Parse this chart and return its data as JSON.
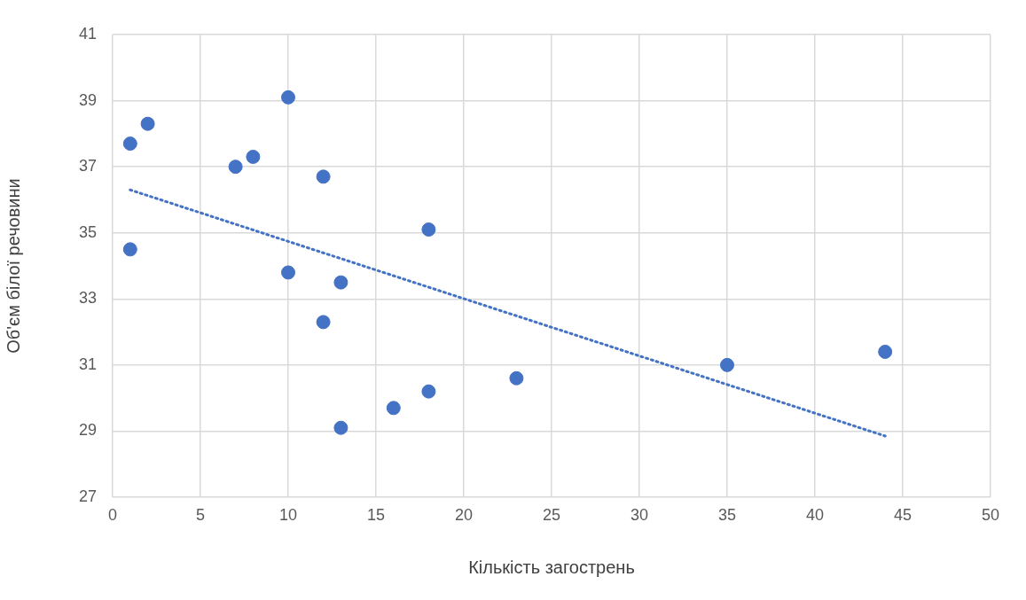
{
  "chart_data": {
    "type": "scatter",
    "xlabel": "Кількість загострень",
    "ylabel": "Об'єм білої речовини",
    "xlim": [
      0,
      50
    ],
    "xticks": [
      0,
      5,
      10,
      15,
      20,
      25,
      30,
      35,
      40,
      45,
      50
    ],
    "ylim": [
      27,
      41
    ],
    "yticks": [
      27,
      29,
      31,
      33,
      35,
      37,
      39,
      41
    ],
    "grid": true,
    "legend": false,
    "marker": "circle",
    "series": [
      {
        "color": "#4472c4",
        "x": [
          1,
          1,
          2,
          7,
          8,
          10,
          10,
          12,
          12,
          13,
          13,
          16,
          18,
          18,
          23,
          35,
          44
        ],
        "values": [
          37.7,
          34.5,
          38.3,
          37.0,
          37.3,
          39.1,
          33.8,
          36.7,
          32.3,
          33.5,
          29.1,
          29.7,
          35.1,
          30.2,
          30.6,
          31.0,
          31.4
        ]
      },
      {
        "type": "line",
        "color": "#4472c4",
        "line_style": "dotted",
        "marker": "none",
        "x": [
          1,
          44
        ],
        "values": [
          36.3,
          28.85
        ]
      }
    ]
  }
}
